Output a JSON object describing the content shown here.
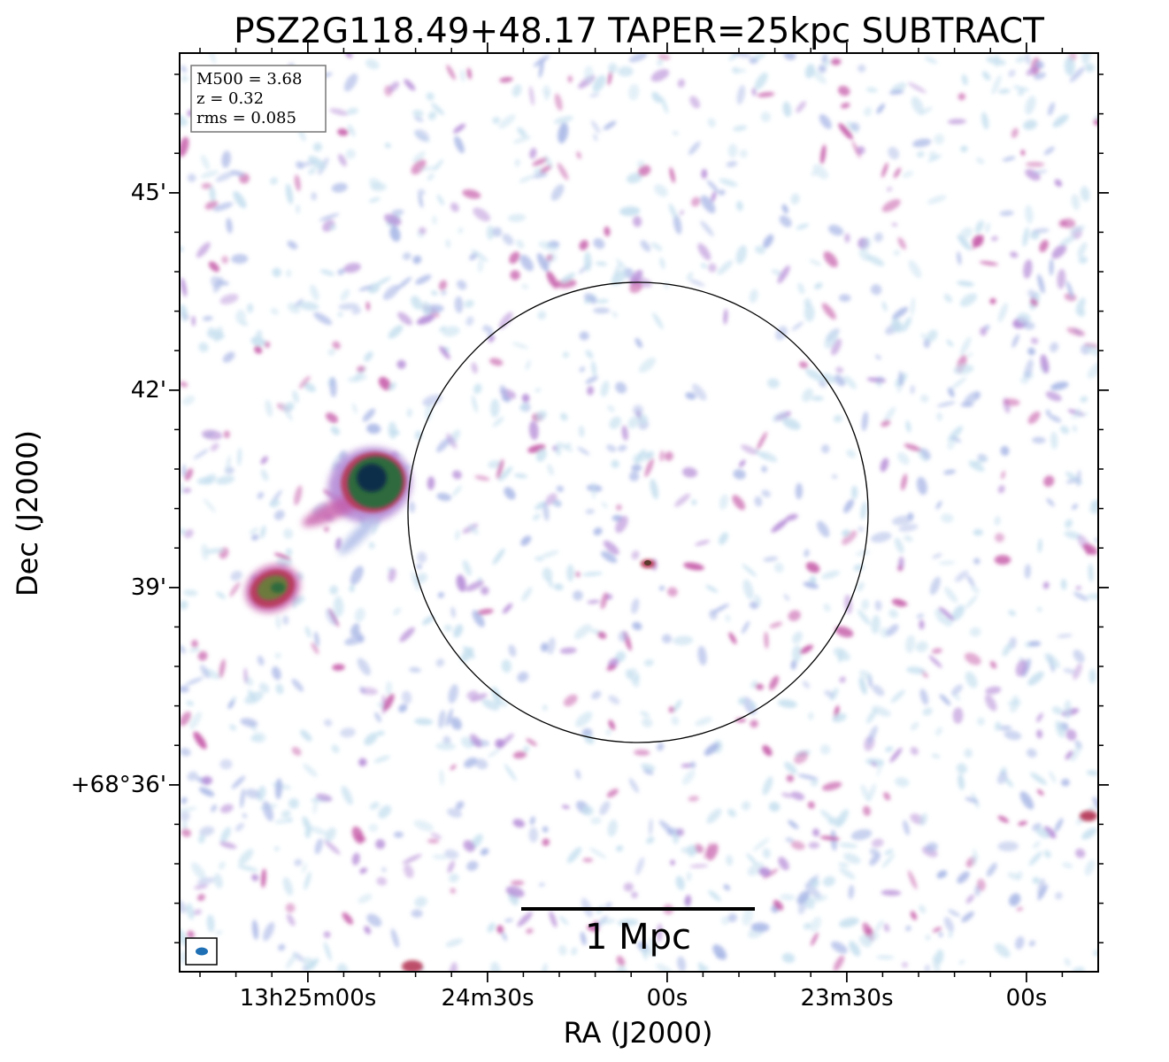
{
  "figure": {
    "title": "PSZ2G118.49+48.17 TAPER=25kpc SUBTRACT",
    "xlabel": "RA (J2000)",
    "ylabel": "Dec (J2000)"
  },
  "info_box": {
    "line1": "M500 = 3.68",
    "line2": "z = 0.32",
    "line3": "rms = 0.085"
  },
  "x_ticks": [
    "13h25m00s",
    "24m30s",
    "00s",
    "23m30s",
    "00s"
  ],
  "y_ticks": [
    "45'",
    "42'",
    "39'",
    "+68°36'"
  ],
  "scalebar": {
    "label": "1 Mpc"
  },
  "colors": {
    "noise_light": "#c6e0ef",
    "noise_mid": "#a9b7e6",
    "noise_purple": "#b48ad6",
    "noise_pink": "#c55aa8",
    "source_red": "#b63a5a",
    "source_green": "#2e6b3e",
    "source_dark": "#0c2f4a",
    "beam": "#1f6fb4"
  }
}
